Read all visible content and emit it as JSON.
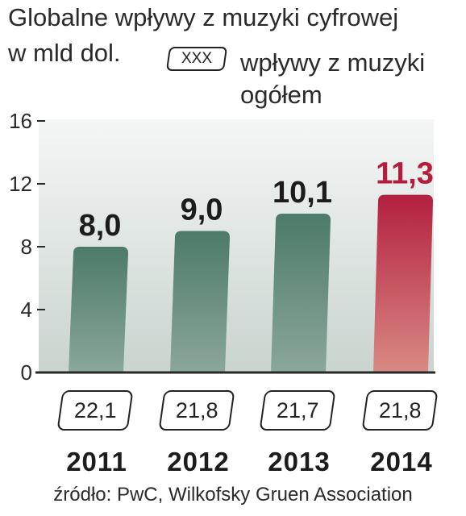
{
  "title_line1": "Globalne wpływy z muzyki cyfrowej",
  "title_line2": "w mld dol.",
  "legend": {
    "box_label": "XXX",
    "text_line1": "wpływy z muzyki",
    "text_line2": "ogółem"
  },
  "source": "źródło: PwC, Wilkofsky Gruen Association",
  "colors": {
    "bar": "#5a8574",
    "highlight_bar": "#b82a45",
    "highlight_label": "#b41e3c",
    "axis": "#2a2a2a"
  },
  "chart_data": {
    "type": "bar",
    "categories": [
      "2011",
      "2012",
      "2013",
      "2014"
    ],
    "values": [
      8.0,
      9.0,
      10.1,
      11.3
    ],
    "value_labels": [
      "8,0",
      "9,0",
      "10,1",
      "11,3"
    ],
    "totals": [
      "22,1",
      "21,8",
      "21,7",
      "21,8"
    ],
    "yticks": [
      "0",
      "4",
      "8",
      "12",
      "16"
    ],
    "ylim": [
      0,
      16
    ],
    "highlight_index": 3,
    "grid": false
  }
}
